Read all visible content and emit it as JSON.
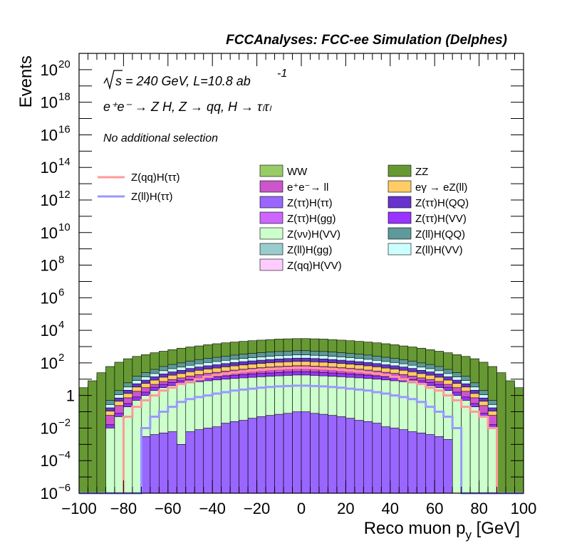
{
  "chart_data": {
    "type": "histogram-stacked",
    "header": "FCCAnalyses: FCC-ee Simulation (Delphes)",
    "xlabel": "Reco muon p",
    "xlabel_subscript": "y",
    "xlabel_unit": " [GeV]",
    "ylabel": "Events",
    "y_scale": "log",
    "xlim": [
      -100,
      100
    ],
    "ylim": [
      1e-06,
      1e+21
    ],
    "x_ticks": [
      -100,
      -80,
      -60,
      -40,
      -20,
      0,
      20,
      40,
      60,
      80,
      100
    ],
    "x_tick_labels": [
      "−100",
      "−80",
      "−60",
      "−40",
      "−20",
      "0",
      "20",
      "40",
      "60",
      "80",
      "100"
    ],
    "y_ticks": [
      {
        "value": 1e-06,
        "base": "10",
        "exp": "−6"
      },
      {
        "value": 0.0001,
        "base": "10",
        "exp": "−4"
      },
      {
        "value": 0.01,
        "base": "10",
        "exp": "−2"
      },
      {
        "value": 1,
        "base": "1",
        "exp": ""
      },
      {
        "value": 100.0,
        "base": "10",
        "exp": "2"
      },
      {
        "value": 10000.0,
        "base": "10",
        "exp": "4"
      },
      {
        "value": 1000000.0,
        "base": "10",
        "exp": "6"
      },
      {
        "value": 100000000.0,
        "base": "10",
        "exp": "8"
      },
      {
        "value": 10000000000.0,
        "base": "10",
        "exp": "10"
      },
      {
        "value": 1000000000000.0,
        "base": "10",
        "exp": "12"
      },
      {
        "value": 100000000000000.0,
        "base": "10",
        "exp": "14"
      },
      {
        "value": 1e+16,
        "base": "10",
        "exp": "16"
      },
      {
        "value": 1e+18,
        "base": "10",
        "exp": "18"
      },
      {
        "value": 1e+20,
        "base": "10",
        "exp": "20"
      }
    ],
    "annotations": {
      "energy": "s = 240 GeV, L=10.8 ab",
      "energy_sup": "-1",
      "process": "e⁺e⁻ → Z H, Z → qq, H → τₗτₗ",
      "selection": "No additional selection"
    },
    "bins": {
      "start": -100,
      "width": 4,
      "count": 50
    },
    "stacked_series": [
      {
        "name": "Z(qq)H(VV)",
        "color": "#ffccff",
        "values": []
      },
      {
        "name": "Z(ll)H(VV)",
        "color": "#ccffff",
        "values": []
      },
      {
        "name": "Z(ll)H(gg)",
        "color": "#99cccc",
        "values": []
      },
      {
        "name": "Z(ll)H(QQ)",
        "color": "#5f9999",
        "values": []
      },
      {
        "name": "Z(νν)H(VV)",
        "color": "#ccffcc",
        "values": []
      },
      {
        "name": "Z(ττ)H(VV)",
        "color": "#9933ff",
        "values": []
      },
      {
        "name": "Z(ττ)H(gg)",
        "color": "#cc66ff",
        "values": []
      },
      {
        "name": "Z(ττ)H(QQ)",
        "color": "#6633cc",
        "values": []
      },
      {
        "name": "Z(ττ)H(ττ)",
        "color": "#9966ff",
        "values": []
      },
      {
        "name": "eγ → eZ(ll)",
        "color": "#ffcc66",
        "values": []
      },
      {
        "name": "e⁺e⁻→ ll",
        "color": "#cc55cc",
        "values": []
      },
      {
        "name": "ZZ",
        "color": "#669933",
        "values": []
      },
      {
        "name": "WW",
        "color": "#99cc66",
        "values": []
      }
    ],
    "stack_totals": {
      "description": "cumulative stack heights per bin, bottom to top layer boundary",
      "ZZ_top": [
        3,
        8,
        25,
        60,
        110,
        180,
        250,
        320,
        420,
        520,
        650,
        800,
        950,
        1100,
        1300,
        1500,
        1700,
        1900,
        2100,
        2300,
        2500,
        2700,
        2900,
        3000,
        3100,
        3100,
        3000,
        2900,
        2700,
        2500,
        2300,
        2100,
        1900,
        1700,
        1500,
        1300,
        1100,
        950,
        800,
        650,
        520,
        420,
        320,
        250,
        180,
        110,
        60,
        25,
        8,
        3
      ],
      "ZllHQQ_top": [
        0,
        0,
        0,
        0.5,
        2,
        6,
        15,
        25,
        40,
        60,
        80,
        100,
        130,
        160,
        190,
        220,
        260,
        300,
        340,
        380,
        420,
        460,
        500,
        530,
        560,
        560,
        530,
        500,
        460,
        420,
        380,
        340,
        300,
        260,
        220,
        190,
        160,
        130,
        100,
        80,
        60,
        40,
        25,
        15,
        6,
        2,
        0.5,
        0,
        0,
        0
      ],
      "nunu_top": [
        0,
        0,
        0,
        0.01,
        0.05,
        0.2,
        0.5,
        1,
        2,
        3,
        4,
        5,
        6,
        7,
        8,
        9,
        10,
        11,
        12,
        13,
        14,
        15,
        16,
        17,
        18,
        18,
        17,
        16,
        15,
        14,
        13,
        12,
        11,
        10,
        9,
        8,
        7,
        6,
        5,
        4,
        3,
        2,
        1,
        0.5,
        0.2,
        0.05,
        0.01,
        0,
        0,
        0
      ],
      "tautauVV_top": [
        0,
        0,
        0,
        0,
        0,
        0,
        0,
        0.003,
        0.004,
        0.005,
        0.006,
        0.001,
        0.006,
        0.008,
        0.01,
        0.012,
        0.02,
        0.025,
        0.03,
        0.04,
        0.05,
        0.06,
        0.07,
        0.08,
        0.1,
        0.1,
        0.08,
        0.07,
        0.06,
        0.05,
        0.04,
        0.03,
        0.025,
        0.02,
        0.012,
        0.01,
        0.008,
        0.006,
        0.005,
        0.004,
        0.003,
        0.002,
        0,
        0,
        0,
        0,
        0,
        0,
        0,
        0
      ]
    },
    "overlay_series": [
      {
        "name": "Z(qq)H(ττ)",
        "color": "#ff9999",
        "values": [
          0,
          0,
          0,
          0,
          0,
          0.05,
          0.2,
          0.5,
          1,
          2,
          3,
          5,
          7,
          10,
          14,
          18,
          22,
          26,
          30,
          34,
          38,
          42,
          45,
          48,
          50,
          50,
          48,
          45,
          42,
          38,
          34,
          30,
          26,
          22,
          18,
          14,
          10,
          7,
          5,
          3,
          2,
          1,
          0.5,
          0.2,
          0.1,
          0.05,
          0.01,
          0,
          0,
          0
        ]
      },
      {
        "name": "Z(ll)H(ττ)",
        "color": "#9999ff",
        "values": [
          0,
          0,
          0,
          0,
          0,
          0,
          0,
          0.01,
          0.05,
          0.1,
          0.2,
          0.4,
          0.6,
          0.8,
          1,
          1.3,
          1.6,
          2,
          2.3,
          2.6,
          3,
          3.3,
          3.6,
          3.8,
          4,
          4,
          3.8,
          3.6,
          3.3,
          3,
          2.6,
          2.3,
          2,
          1.6,
          1.3,
          1,
          0.8,
          0.6,
          0.4,
          0.2,
          0.1,
          0.05,
          0.01,
          0,
          0,
          0,
          0,
          0,
          0,
          0
        ]
      }
    ],
    "legend": {
      "overlay_entries": [
        "Z(qq)H(ττ)",
        "Z(ll)H(ττ)"
      ],
      "col1": [
        "WW",
        "e⁺e⁻→ ll",
        "Z(ττ)H(ττ)",
        "Z(ττ)H(gg)",
        "Z(νν)H(VV)",
        "Z(ll)H(gg)",
        "Z(qq)H(VV)"
      ],
      "col2": [
        "ZZ",
        "eγ → eZ(ll)",
        "Z(ττ)H(QQ)",
        "Z(ττ)H(VV)",
        "Z(ll)H(QQ)",
        "Z(ll)H(VV)"
      ]
    }
  }
}
